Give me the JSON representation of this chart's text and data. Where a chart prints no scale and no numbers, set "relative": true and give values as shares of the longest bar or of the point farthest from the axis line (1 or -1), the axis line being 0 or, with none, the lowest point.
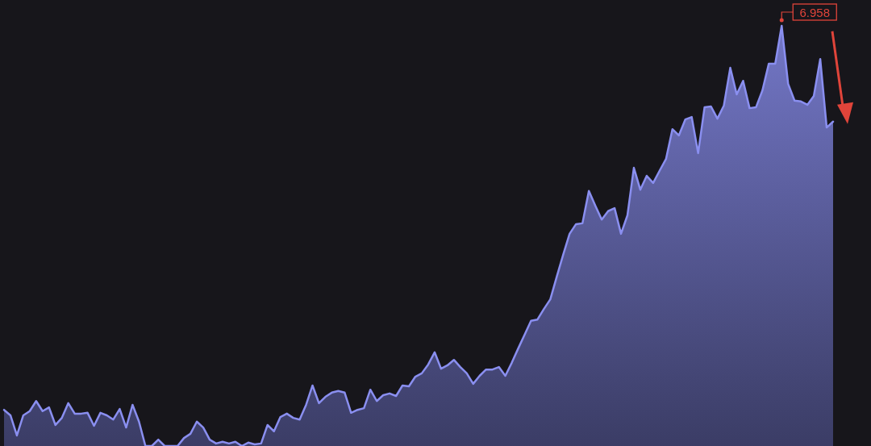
{
  "chart_data": {
    "type": "area",
    "relative": true,
    "color": "#8a8ff0",
    "categories": [
      null,
      null,
      null,
      null,
      null,
      null,
      null,
      null,
      null,
      null,
      null,
      null,
      null,
      null,
      null,
      null,
      null,
      null,
      null,
      null,
      null,
      null,
      null,
      null,
      null,
      null,
      null,
      null,
      null,
      null,
      null,
      null,
      null,
      null,
      null,
      null,
      null,
      null,
      null,
      null,
      null,
      null,
      null,
      null,
      null,
      null,
      null,
      null,
      null,
      null,
      null,
      null,
      null,
      null,
      null,
      null,
      null,
      null,
      null,
      null,
      null,
      null,
      null,
      null,
      null,
      null,
      null,
      null,
      null,
      null,
      null,
      null,
      null,
      null,
      null,
      null,
      null,
      null,
      null,
      null,
      null,
      null,
      null,
      null,
      null,
      null,
      null,
      null,
      null,
      null,
      null,
      null,
      null,
      null,
      null,
      null,
      null,
      null,
      null,
      null,
      null,
      null,
      null,
      null,
      null,
      null,
      null,
      null,
      null,
      null,
      null,
      null,
      null,
      null,
      null,
      null,
      null,
      null,
      null,
      null,
      null,
      null,
      null,
      null,
      null,
      null,
      null,
      null,
      null,
      null
    ],
    "values": [
      0.086,
      0.073,
      0.025,
      0.073,
      0.083,
      0.107,
      0.083,
      0.092,
      0.05,
      0.067,
      0.102,
      0.077,
      0.077,
      0.079,
      0.048,
      0.079,
      0.073,
      0.063,
      0.088,
      0.044,
      0.098,
      0.058,
      0,
      0,
      0.015,
      0,
      0,
      0,
      0.019,
      0.029,
      0.058,
      0.044,
      0.015,
      0.006,
      0.01,
      0.006,
      0.01,
      0,
      0.008,
      0.004,
      0.006,
      0.05,
      0.035,
      0.069,
      0.077,
      0.067,
      0.063,
      0.098,
      0.144,
      0.102,
      0.117,
      0.127,
      0.131,
      0.127,
      0.079,
      0.086,
      0.09,
      0.134,
      0.107,
      0.121,
      0.125,
      0.119,
      0.144,
      0.142,
      0.165,
      0.173,
      0.194,
      0.223,
      0.184,
      0.192,
      0.205,
      0.188,
      0.173,
      0.148,
      0.167,
      0.182,
      0.182,
      0.188,
      0.167,
      0.198,
      0.232,
      0.265,
      0.298,
      0.301,
      0.326,
      0.349,
      0.403,
      0.455,
      0.505,
      0.528,
      0.53,
      0.607,
      0.572,
      0.539,
      0.559,
      0.566,
      0.505,
      0.549,
      0.662,
      0.61,
      0.643,
      0.626,
      0.655,
      0.683,
      0.754,
      0.739,
      0.777,
      0.783,
      0.697,
      0.806,
      0.808,
      0.779,
      0.81,
      0.9,
      0.837,
      0.869,
      0.804,
      0.806,
      0.846,
      0.91,
      0.91,
      1,
      0.862,
      0.822,
      0.82,
      0.812,
      0.833,
      0.921,
      0.758,
      0.772
    ],
    "annotations": [
      "6.958"
    ]
  }
}
